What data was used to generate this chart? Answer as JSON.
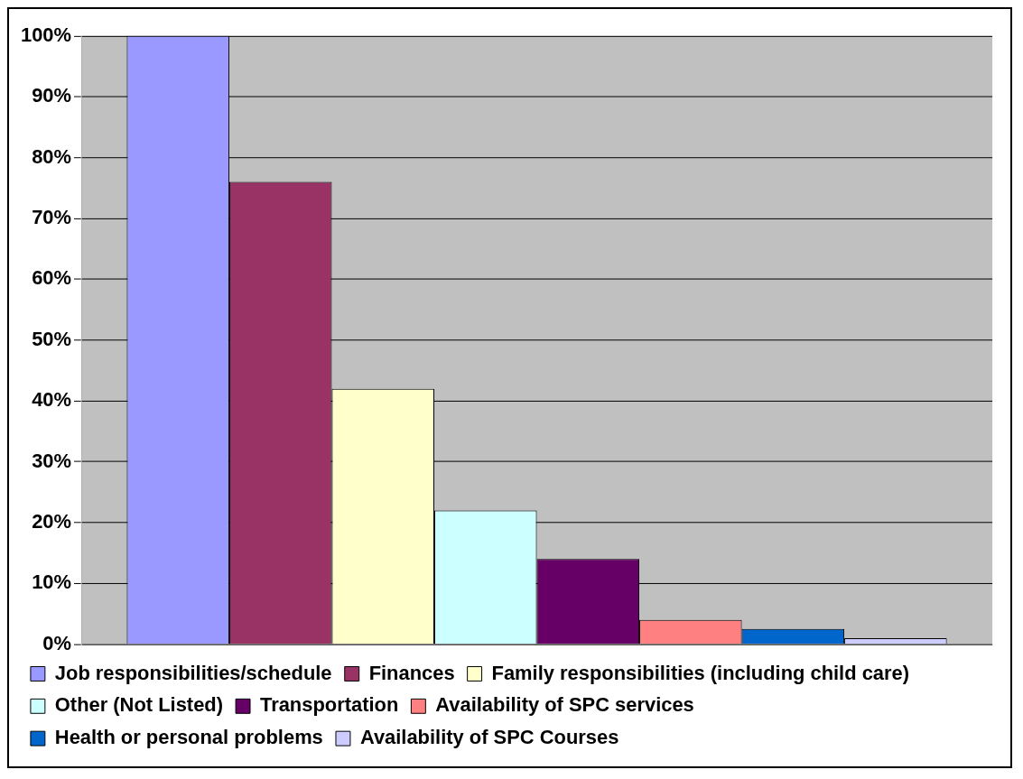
{
  "chart_data": {
    "type": "bar",
    "categories": [
      null
    ],
    "series": [
      {
        "name": "Job responsibilities/schedule",
        "color": "#9999ff",
        "values": [
          100
        ]
      },
      {
        "name": "Finances",
        "color": "#993366",
        "values": [
          76
        ]
      },
      {
        "name": "Family responsibilities (including child care)",
        "color": "#ffffcc",
        "values": [
          42
        ]
      },
      {
        "name": "Other (Not Listed)",
        "color": "#ccffff",
        "values": [
          22
        ]
      },
      {
        "name": "Transportation",
        "color": "#660066",
        "values": [
          14
        ]
      },
      {
        "name": "Availability of SPC services",
        "color": "#ff8080",
        "values": [
          4
        ]
      },
      {
        "name": "Health or personal problems",
        "color": "#0066cc",
        "values": [
          2.5
        ]
      },
      {
        "name": "Availability of SPC Courses",
        "color": "#ccccff",
        "values": [
          1
        ]
      }
    ],
    "ylim": [
      0,
      100
    ],
    "yticks": [
      {
        "value": 0,
        "label": "0%"
      },
      {
        "value": 10,
        "label": "10%"
      },
      {
        "value": 20,
        "label": "20%"
      },
      {
        "value": 30,
        "label": "30%"
      },
      {
        "value": 40,
        "label": "40%"
      },
      {
        "value": 50,
        "label": "50%"
      },
      {
        "value": 60,
        "label": "60%"
      },
      {
        "value": 70,
        "label": "70%"
      },
      {
        "value": 80,
        "label": "80%"
      },
      {
        "value": 90,
        "label": "90%"
      },
      {
        "value": 100,
        "label": "100%"
      }
    ],
    "grid": "y",
    "legend": "bottom"
  }
}
